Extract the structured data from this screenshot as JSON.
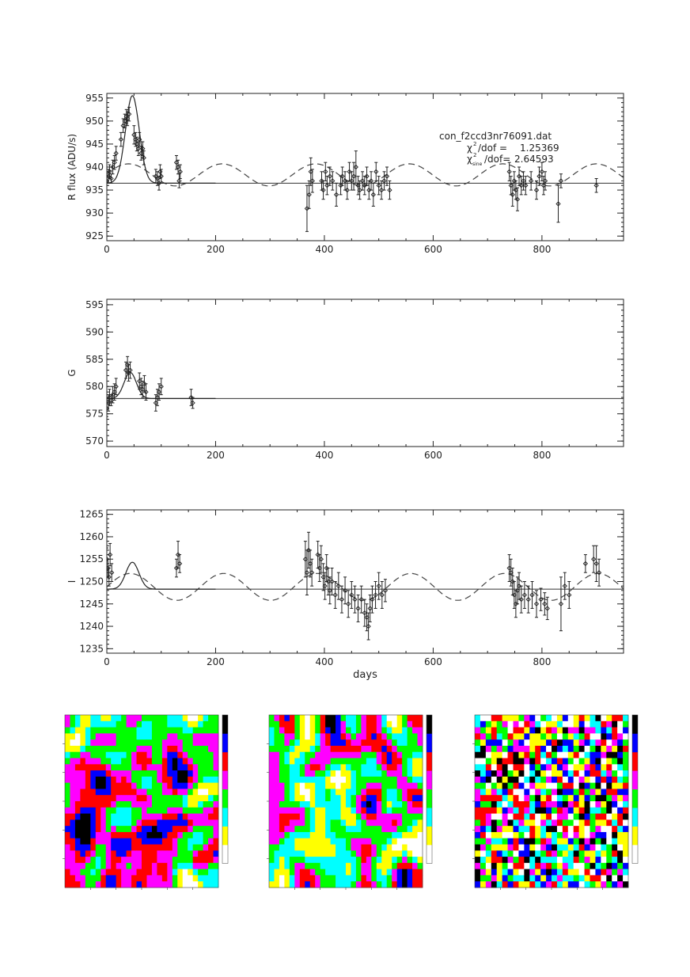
{
  "chart_data": [
    {
      "type": "scatter",
      "ylabel": "R flux (ADU/s)",
      "xlabel": "",
      "xlim": [
        0,
        950
      ],
      "ylim": [
        924,
        956
      ],
      "xticks": [
        0,
        200,
        400,
        600,
        800
      ],
      "yticks": [
        925,
        930,
        935,
        940,
        945,
        950,
        955
      ],
      "annotation": {
        "filename": "con_f2ccd3nr76091.dat",
        "chi_label": "/dof =",
        "chi_value": "1.25369",
        "chi_sine_label": "/dof=",
        "chi_sine_value": "2.64593"
      },
      "baseline": 936.5,
      "peak": {
        "t0": 47,
        "amp": 19,
        "width": 18
      },
      "sine": {
        "mean": 938.3,
        "amp": 2.4,
        "period": 172,
        "phase_day": 40,
        "start": 0,
        "end": 950
      },
      "points": [
        [
          0,
          937,
          1
        ],
        [
          3,
          938,
          1.5
        ],
        [
          5,
          939,
          1.5
        ],
        [
          8,
          937.5,
          1
        ],
        [
          11,
          940,
          1.5
        ],
        [
          14,
          941,
          1.5
        ],
        [
          17,
          943,
          1.5
        ],
        [
          26,
          946,
          1.5
        ],
        [
          30,
          949,
          1.5
        ],
        [
          33,
          950,
          1.5
        ],
        [
          36,
          951,
          1.5
        ],
        [
          38,
          950.5,
          1.5
        ],
        [
          41,
          951.5,
          1.5
        ],
        [
          50,
          947,
          2
        ],
        [
          53,
          946,
          1.5
        ],
        [
          55,
          945,
          1.5
        ],
        [
          58,
          944,
          1.5
        ],
        [
          60,
          946,
          1.5
        ],
        [
          63,
          943,
          1.5
        ],
        [
          66,
          944,
          1.5
        ],
        [
          68,
          942,
          1.5
        ],
        [
          90,
          938,
          1.5
        ],
        [
          93,
          937.5,
          1.5
        ],
        [
          96,
          936.5,
          1.5
        ],
        [
          98,
          939,
          1.5
        ],
        [
          100,
          938,
          1.5
        ],
        [
          128,
          941,
          1.5
        ],
        [
          131,
          940,
          1.5
        ],
        [
          133,
          937,
          1.5
        ],
        [
          135,
          939,
          1.5
        ],
        [
          368,
          931,
          5
        ],
        [
          372,
          934,
          3
        ],
        [
          375,
          939,
          3
        ],
        [
          378,
          937,
          2.5
        ],
        [
          395,
          937,
          2
        ],
        [
          398,
          935,
          2
        ],
        [
          402,
          939,
          2
        ],
        [
          405,
          936,
          2
        ],
        [
          410,
          938,
          2
        ],
        [
          415,
          937,
          2
        ],
        [
          422,
          934,
          2.5
        ],
        [
          430,
          936,
          2
        ],
        [
          433,
          938,
          2
        ],
        [
          438,
          937,
          2
        ],
        [
          442,
          935,
          2
        ],
        [
          446,
          939,
          2
        ],
        [
          450,
          937,
          2
        ],
        [
          454,
          938,
          3
        ],
        [
          458,
          940,
          3.5
        ],
        [
          462,
          936,
          2
        ],
        [
          465,
          935,
          2
        ],
        [
          470,
          937,
          2
        ],
        [
          474,
          936,
          2
        ],
        [
          478,
          938,
          2
        ],
        [
          482,
          935,
          2
        ],
        [
          486,
          937,
          2
        ],
        [
          490,
          934,
          2.5
        ],
        [
          495,
          939,
          2
        ],
        [
          500,
          936,
          2
        ],
        [
          505,
          935,
          2
        ],
        [
          510,
          937,
          2
        ],
        [
          515,
          938,
          2
        ],
        [
          520,
          935,
          2
        ],
        [
          740,
          939,
          2
        ],
        [
          743,
          936,
          2
        ],
        [
          746,
          934,
          2.5
        ],
        [
          749,
          937,
          2
        ],
        [
          752,
          935,
          2
        ],
        [
          755,
          933,
          2.5
        ],
        [
          758,
          938,
          2
        ],
        [
          762,
          936,
          2
        ],
        [
          766,
          937,
          2
        ],
        [
          770,
          936,
          2
        ],
        [
          780,
          937,
          2
        ],
        [
          790,
          935,
          2
        ],
        [
          795,
          938,
          2
        ],
        [
          800,
          939,
          2
        ],
        [
          803,
          936,
          2
        ],
        [
          806,
          937,
          2
        ],
        [
          830,
          932,
          4
        ],
        [
          835,
          937,
          1.5
        ],
        [
          900,
          936,
          1.5
        ]
      ]
    },
    {
      "type": "scatter",
      "ylabel": "G",
      "xlabel": "",
      "xlim": [
        0,
        950
      ],
      "ylim": [
        569,
        596
      ],
      "xticks": [
        0,
        200,
        400,
        600,
        800
      ],
      "yticks": [
        570,
        575,
        580,
        585,
        590,
        595
      ],
      "baseline": 577.8,
      "peak": {
        "t0": 43,
        "amp": 4.8,
        "width": 16
      },
      "points": [
        [
          0,
          576,
          1.5
        ],
        [
          3,
          577,
          1.5
        ],
        [
          5,
          578,
          1.5
        ],
        [
          8,
          577.5,
          1
        ],
        [
          11,
          578.5,
          1.5
        ],
        [
          14,
          579,
          1.5
        ],
        [
          17,
          580,
          1.5
        ],
        [
          35,
          583,
          1.5
        ],
        [
          38,
          584,
          1.5
        ],
        [
          40,
          582.5,
          1.5
        ],
        [
          43,
          583,
          1.5
        ],
        [
          60,
          581,
          1.5
        ],
        [
          63,
          580,
          1.5
        ],
        [
          66,
          579.5,
          1.5
        ],
        [
          69,
          580.5,
          1.5
        ],
        [
          72,
          579,
          1.5
        ],
        [
          90,
          577,
          1.5
        ],
        [
          93,
          578,
          1.5
        ],
        [
          96,
          579,
          1.5
        ],
        [
          100,
          580,
          1.5
        ],
        [
          155,
          578,
          1.5
        ],
        [
          158,
          577,
          1
        ]
      ]
    },
    {
      "type": "scatter",
      "ylabel": "I",
      "xlabel": "days",
      "xlim": [
        0,
        950
      ],
      "ylim": [
        1234,
        1266
      ],
      "xticks": [
        0,
        200,
        400,
        600,
        800
      ],
      "yticks": [
        1235,
        1240,
        1245,
        1250,
        1255,
        1260,
        1265
      ],
      "baseline": 1248.3,
      "peak": {
        "t0": 47,
        "amp": 6,
        "width": 17
      },
      "sine": {
        "mean": 1248.8,
        "amp": 3,
        "period": 172,
        "phase_day": 215,
        "start": 0,
        "end": 950
      },
      "points": [
        [
          0,
          1255,
          2.5
        ],
        [
          2,
          1253,
          2
        ],
        [
          4,
          1251,
          2
        ],
        [
          6,
          1256,
          2.5
        ],
        [
          9,
          1252,
          2
        ],
        [
          128,
          1253,
          2
        ],
        [
          131,
          1256,
          3
        ],
        [
          134,
          1254,
          2
        ],
        [
          365,
          1255,
          4
        ],
        [
          368,
          1252,
          5
        ],
        [
          371,
          1257,
          4
        ],
        [
          374,
          1254,
          3
        ],
        [
          377,
          1252,
          3
        ],
        [
          388,
          1256,
          3
        ],
        [
          391,
          1253,
          3
        ],
        [
          394,
          1255,
          3
        ],
        [
          398,
          1251,
          3
        ],
        [
          401,
          1249,
          3
        ],
        [
          404,
          1253,
          3
        ],
        [
          407,
          1250,
          3
        ],
        [
          410,
          1248,
          3
        ],
        [
          414,
          1250,
          3
        ],
        [
          420,
          1247,
          3
        ],
        [
          426,
          1249,
          3
        ],
        [
          432,
          1246,
          3
        ],
        [
          438,
          1248,
          3
        ],
        [
          444,
          1245,
          3
        ],
        [
          450,
          1247,
          3
        ],
        [
          456,
          1246,
          3
        ],
        [
          462,
          1244,
          3
        ],
        [
          468,
          1246,
          3
        ],
        [
          474,
          1243,
          3
        ],
        [
          478,
          1242,
          3
        ],
        [
          481,
          1240,
          3
        ],
        [
          484,
          1244,
          3
        ],
        [
          488,
          1246,
          3
        ],
        [
          494,
          1247,
          3
        ],
        [
          500,
          1249,
          3
        ],
        [
          506,
          1247,
          3
        ],
        [
          512,
          1248,
          2.5
        ],
        [
          740,
          1253,
          3
        ],
        [
          743,
          1252,
          3
        ],
        [
          746,
          1250,
          3
        ],
        [
          749,
          1247,
          3
        ],
        [
          752,
          1245,
          3
        ],
        [
          755,
          1248,
          3
        ],
        [
          758,
          1249,
          3
        ],
        [
          762,
          1246,
          3
        ],
        [
          768,
          1247,
          3
        ],
        [
          775,
          1246,
          3
        ],
        [
          782,
          1247,
          3
        ],
        [
          790,
          1245,
          3
        ],
        [
          798,
          1246,
          2.5
        ],
        [
          805,
          1245,
          2.5
        ],
        [
          810,
          1244,
          2.5
        ],
        [
          835,
          1245,
          6
        ],
        [
          842,
          1249,
          3
        ],
        [
          850,
          1247,
          3
        ],
        [
          880,
          1254,
          2
        ],
        [
          895,
          1255,
          3
        ],
        [
          900,
          1254,
          4
        ],
        [
          905,
          1252,
          3
        ]
      ]
    },
    {
      "type": "heatmap",
      "cols": 30,
      "rows": 28,
      "seed": 11,
      "smooth": 3,
      "palette": [
        "#ffffff",
        "#ffff00",
        "#00ffff",
        "#00ff00",
        "#ff00ff",
        "#ff0000",
        "#0000ff",
        "#000000"
      ],
      "title": "",
      "colorbar_labels": [
        "",
        "",
        "",
        "",
        "",
        "",
        ""
      ]
    },
    {
      "type": "heatmap",
      "cols": 30,
      "rows": 28,
      "seed": 29,
      "smooth": 3,
      "palette": [
        "#ffffff",
        "#ffff00",
        "#00ffff",
        "#00ff00",
        "#ff00ff",
        "#ff0000",
        "#0000ff",
        "#000000"
      ],
      "title": "",
      "colorbar_labels": [
        "",
        "",
        "",
        "",
        "",
        "",
        ""
      ]
    },
    {
      "type": "heatmap",
      "cols": 28,
      "rows": 28,
      "seed": 53,
      "smooth": 0,
      "palette": [
        "#ffffff",
        "#ffff00",
        "#00ffff",
        "#00ff00",
        "#ff00ff",
        "#ff0000",
        "#0000ff",
        "#000000"
      ],
      "title": "",
      "colorbar_labels": [
        "",
        "",
        "",
        "",
        "",
        "",
        ""
      ]
    }
  ]
}
